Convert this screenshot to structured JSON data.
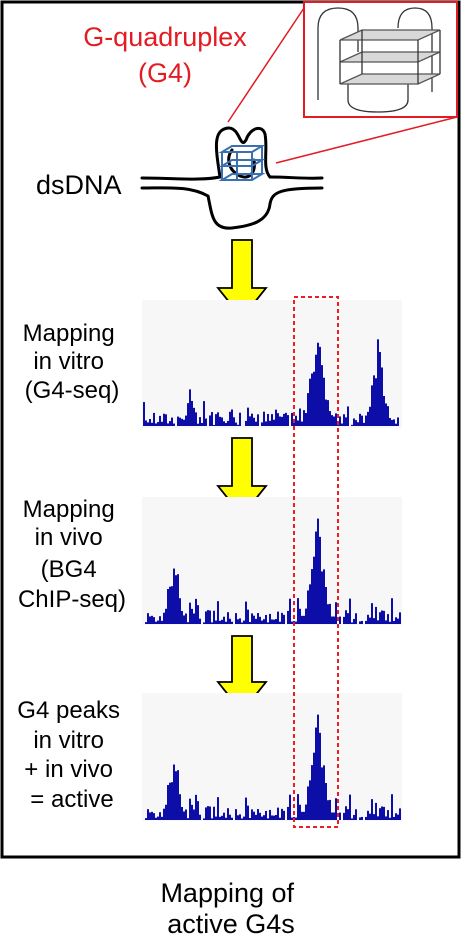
{
  "g4_title_line1": "G-quadruplex",
  "g4_title_line2": "(G4)",
  "dsdna_label": "dsDNA",
  "colors": {
    "g4_red": "#e31b23",
    "quartet_blue": "#3a6fb0",
    "peak_blue": "#0d0da8",
    "arrow_yellow": "#ffff00",
    "highlight_red": "#ee1c25",
    "panel_bg": "#f7f7f7"
  },
  "tracks": [
    {
      "label_lines": [
        "Mapping",
        "in vitro",
        "(G4-seq)"
      ]
    },
    {
      "label_lines": [
        "Mapping",
        "in vivo",
        "(BG4",
        "ChIP-seq)"
      ]
    },
    {
      "label_lines": [
        "G4 peaks",
        "in vitro",
        "+ in vivo",
        "= active"
      ]
    }
  ],
  "caption_lines": [
    "Mapping of",
    "active G4s"
  ]
}
